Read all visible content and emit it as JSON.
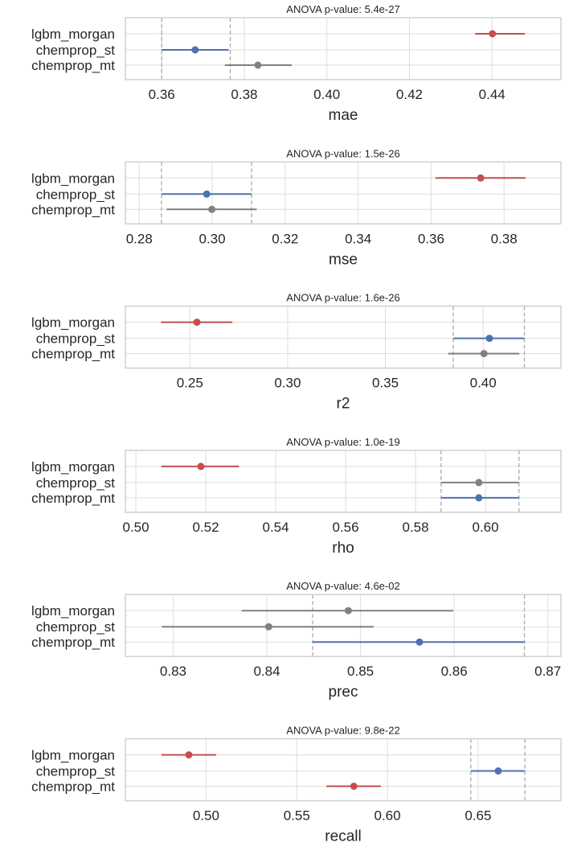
{
  "chart_data": [
    {
      "type": "pointrange",
      "title": "ANOVA p-value: 5.4e-27",
      "xlabel": "mae",
      "ylabel": "",
      "xlim": [
        0.3512,
        0.4567
      ],
      "xticks": [
        0.36,
        0.38,
        0.4,
        0.42,
        0.44
      ],
      "xtick_labels": [
        "0.36",
        "0.38",
        "0.40",
        "0.42",
        "0.44"
      ],
      "categories": [
        "lgbm_morgan",
        "chemprop_st",
        "chemprop_mt"
      ],
      "series": [
        {
          "name": "lgbm_morgan",
          "value": 0.4401,
          "lower": 0.4359,
          "upper": 0.448,
          "color": "#c44e52"
        },
        {
          "name": "chemprop_st",
          "value": 0.3681,
          "lower": 0.36,
          "upper": 0.3762,
          "color": "#4c72b0"
        },
        {
          "name": "chemprop_mt",
          "value": 0.3833,
          "lower": 0.3753,
          "upper": 0.3915,
          "color": "#808080"
        }
      ],
      "reference_lines": [
        0.36,
        0.3766
      ],
      "grid": true
    },
    {
      "type": "pointrange",
      "title": "ANOVA p-value: 1.5e-26",
      "xlabel": "mse",
      "ylabel": "",
      "xlim": [
        0.2762,
        0.3956
      ],
      "xticks": [
        0.28,
        0.3,
        0.32,
        0.34,
        0.36,
        0.38
      ],
      "xtick_labels": [
        "0.28",
        "0.30",
        "0.32",
        "0.34",
        "0.36",
        "0.38"
      ],
      "categories": [
        "lgbm_morgan",
        "chemprop_st",
        "chemprop_mt"
      ],
      "series": [
        {
          "name": "lgbm_morgan",
          "value": 0.3736,
          "lower": 0.3612,
          "upper": 0.3859,
          "color": "#c44e52"
        },
        {
          "name": "chemprop_st",
          "value": 0.2985,
          "lower": 0.2861,
          "upper": 0.3108,
          "color": "#4c72b0"
        },
        {
          "name": "chemprop_mt",
          "value": 0.2999,
          "lower": 0.2875,
          "upper": 0.3122,
          "color": "#808080"
        }
      ],
      "reference_lines": [
        0.2861,
        0.3108
      ],
      "grid": true
    },
    {
      "type": "pointrange",
      "title": "ANOVA p-value: 1.6e-26",
      "xlabel": "r2",
      "ylabel": "",
      "xlim": [
        0.217,
        0.4398
      ],
      "xticks": [
        0.25,
        0.3,
        0.35,
        0.4
      ],
      "xtick_labels": [
        "0.25",
        "0.30",
        "0.35",
        "0.40"
      ],
      "categories": [
        "lgbm_morgan",
        "chemprop_st",
        "chemprop_mt"
      ],
      "series": [
        {
          "name": "lgbm_morgan",
          "value": 0.2536,
          "lower": 0.2352,
          "upper": 0.2717,
          "color": "#c44e52"
        },
        {
          "name": "chemprop_st",
          "value": 0.4032,
          "lower": 0.3847,
          "upper": 0.4211,
          "color": "#4c72b0"
        },
        {
          "name": "chemprop_mt",
          "value": 0.4004,
          "lower": 0.3821,
          "upper": 0.4185,
          "color": "#808080"
        }
      ],
      "reference_lines": [
        0.3847,
        0.4211
      ],
      "grid": true
    },
    {
      "type": "pointrange",
      "title": "ANOVA p-value: 1.0e-19",
      "xlabel": "rho",
      "ylabel": "",
      "xlim": [
        0.497,
        0.6216
      ],
      "xticks": [
        0.5,
        0.52,
        0.54,
        0.56,
        0.58,
        0.6
      ],
      "xtick_labels": [
        "0.50",
        "0.52",
        "0.54",
        "0.56",
        "0.58",
        "0.60"
      ],
      "categories": [
        "lgbm_morgan",
        "chemprop_st",
        "chemprop_mt"
      ],
      "series": [
        {
          "name": "lgbm_morgan",
          "value": 0.5186,
          "lower": 0.5073,
          "upper": 0.5295,
          "color": "#c44e52"
        },
        {
          "name": "chemprop_st",
          "value": 0.5981,
          "lower": 0.5873,
          "upper": 0.6096,
          "color": "#808080"
        },
        {
          "name": "chemprop_mt",
          "value": 0.5981,
          "lower": 0.5873,
          "upper": 0.6096,
          "color": "#4c72b0"
        }
      ],
      "reference_lines": [
        0.5873,
        0.6096
      ],
      "grid": true
    },
    {
      "type": "pointrange",
      "title": "ANOVA p-value: 4.6e-02",
      "xlabel": "prec",
      "ylabel": "",
      "xlim": [
        0.8249,
        0.8714
      ],
      "xticks": [
        0.83,
        0.84,
        0.85,
        0.86,
        0.87
      ],
      "xtick_labels": [
        "0.83",
        "0.84",
        "0.85",
        "0.86",
        "0.87"
      ],
      "categories": [
        "lgbm_morgan",
        "chemprop_st",
        "chemprop_mt"
      ],
      "series": [
        {
          "name": "lgbm_morgan",
          "value": 0.8487,
          "lower": 0.8373,
          "upper": 0.8599,
          "color": "#808080"
        },
        {
          "name": "chemprop_st",
          "value": 0.8402,
          "lower": 0.8288,
          "upper": 0.8514,
          "color": "#808080"
        },
        {
          "name": "chemprop_mt",
          "value": 0.8563,
          "lower": 0.8449,
          "upper": 0.8675,
          "color": "#4c72b0"
        }
      ],
      "reference_lines": [
        0.8449,
        0.8675
      ],
      "grid": true
    },
    {
      "type": "pointrange",
      "title": "ANOVA p-value: 9.8e-22",
      "xlabel": "recall",
      "ylabel": "",
      "xlim": [
        0.4555,
        0.6957
      ],
      "xticks": [
        0.5,
        0.55,
        0.6,
        0.65
      ],
      "xtick_labels": [
        "0.50",
        "0.55",
        "0.60",
        "0.65"
      ],
      "categories": [
        "lgbm_morgan",
        "chemprop_st",
        "chemprop_mt"
      ],
      "series": [
        {
          "name": "lgbm_morgan",
          "value": 0.4905,
          "lower": 0.4754,
          "upper": 0.5056,
          "color": "#c44e52"
        },
        {
          "name": "chemprop_st",
          "value": 0.6611,
          "lower": 0.646,
          "upper": 0.6758,
          "color": "#4c72b0"
        },
        {
          "name": "chemprop_mt",
          "value": 0.5815,
          "lower": 0.5664,
          "upper": 0.5964,
          "color": "#c44e52"
        }
      ],
      "reference_lines": [
        0.646,
        0.6758
      ],
      "grid": true
    }
  ],
  "colors": {
    "grid": "#dddddd",
    "frame": "#d0d0d0",
    "reference_line": "#aaaaaa",
    "text": "#262626"
  }
}
